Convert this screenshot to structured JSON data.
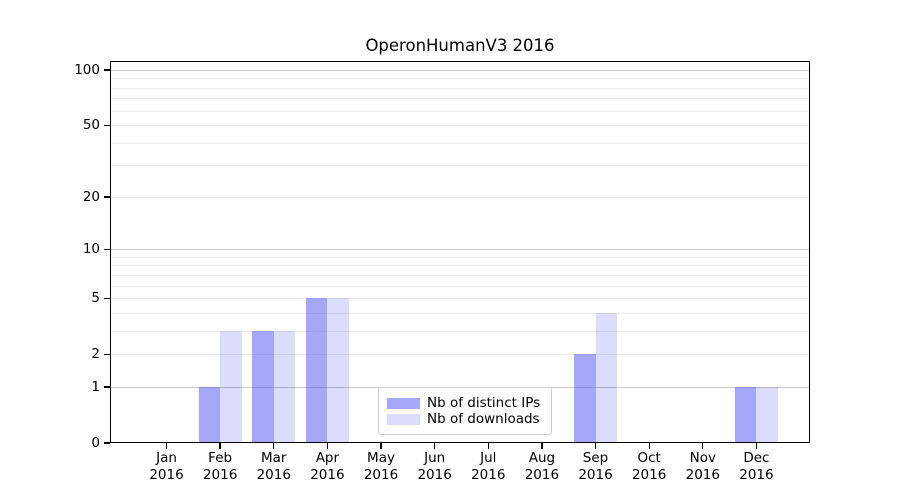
{
  "title": "OperonHumanV3 2016",
  "chart_data": {
    "type": "bar",
    "title": "OperonHumanV3 2016",
    "categories": [
      "Jan 2016",
      "Feb 2016",
      "Mar 2016",
      "Apr 2016",
      "May 2016",
      "Jun 2016",
      "Jul 2016",
      "Aug 2016",
      "Sep 2016",
      "Oct 2016",
      "Nov 2016",
      "Dec 2016"
    ],
    "series": [
      {
        "name": "Nb of distinct IPs",
        "color": "rgba(80,80,240,0.5)",
        "color_on_white": "#a7a7f7",
        "values": [
          0,
          1,
          3,
          5,
          0,
          0,
          0,
          0,
          2,
          0,
          0,
          1
        ]
      },
      {
        "name": "Nb of downloads",
        "color": "rgba(80,80,240,0.2)",
        "color_on_white": "#dcdcfc",
        "values": [
          0,
          3,
          3,
          5,
          0,
          0,
          0,
          0,
          4,
          0,
          0,
          1
        ]
      }
    ],
    "xlabel": "",
    "ylabel": "",
    "y_axis": {
      "scale": "log1p",
      "tick_values": [
        0,
        1,
        2,
        5,
        10,
        20,
        50,
        100
      ],
      "tick_labels": [
        "0",
        "1",
        "2",
        "5",
        "10",
        "20",
        "50",
        "100"
      ],
      "major_gridlines": [
        1,
        10,
        100
      ],
      "minor_gridlines": [
        2,
        3,
        4,
        5,
        6,
        7,
        8,
        9,
        20,
        30,
        40,
        50,
        60,
        70,
        80,
        90
      ],
      "ylim": [
        0,
        112
      ]
    },
    "grid": true,
    "legend_position": "lower center"
  },
  "colors": {
    "background": "#ffffff",
    "axis": "#000000",
    "major_grid": "#c8c8c8",
    "minor_grid": "#ededed",
    "legend_border": "#cccccc",
    "text": "#000000"
  }
}
